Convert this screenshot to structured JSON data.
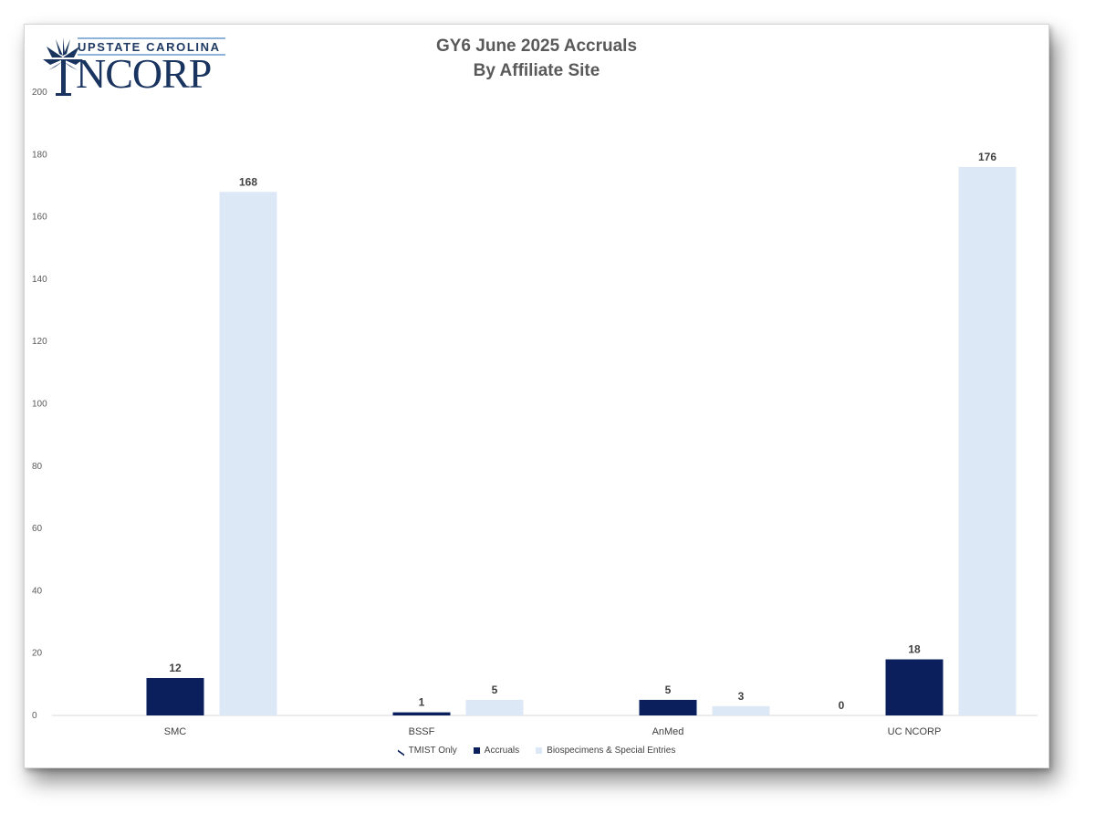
{
  "logo": {
    "tagline": "UPSTATE CAROLINA",
    "wordmark": "NCORP"
  },
  "colors": {
    "tmist": "#0a1f5c",
    "accruals": "#0a1f5c",
    "biospecimens": "#dce8f5",
    "axis": "#d9d9d9"
  },
  "chart_data": {
    "type": "bar",
    "title": "GY6 June 2025 Accruals",
    "subtitle": "By Affiliate Site",
    "categories": [
      "SMC",
      "BSSF",
      "AnMed",
      "UC NCORP"
    ],
    "series": [
      {
        "name": "TMIST Only",
        "values": [
          null,
          null,
          null,
          0
        ]
      },
      {
        "name": "Accruals",
        "values": [
          12,
          1,
          5,
          18
        ]
      },
      {
        "name": "Biospecimens & Special Entries",
        "values": [
          168,
          5,
          3,
          176
        ]
      }
    ],
    "ylim": [
      0,
      200
    ],
    "yticks": [
      0,
      20,
      40,
      60,
      80,
      100,
      120,
      140,
      160,
      180,
      200
    ],
    "grid": false,
    "legend_position": "bottom"
  }
}
